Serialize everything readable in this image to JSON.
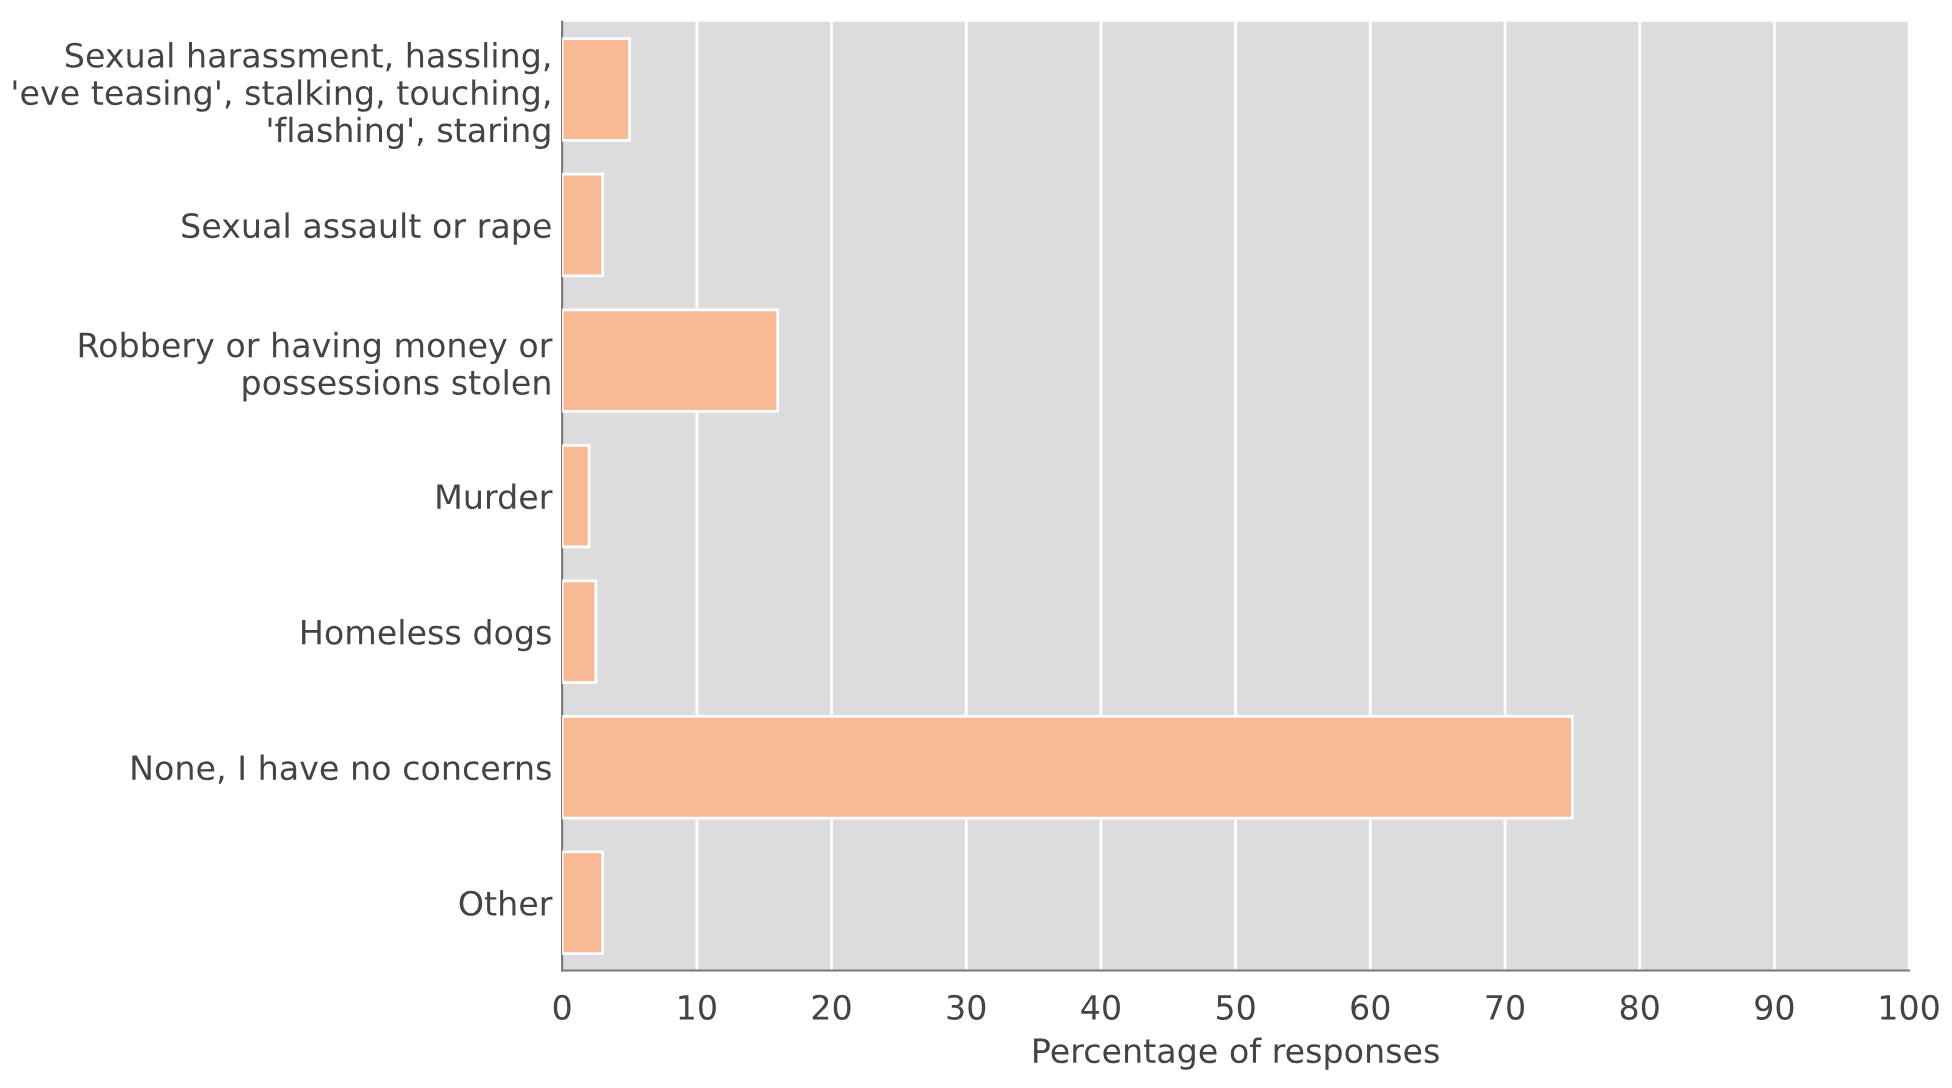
{
  "chart_data": {
    "type": "bar",
    "orientation": "horizontal",
    "xlabel": "Percentage of responses",
    "categories": [
      "Sexual harassment, hassling,\n'eve teasing', stalking, touching,\n'flashing', staring",
      "Sexual assault or rape",
      "Robbery or having money or\npossessions stolen",
      "Murder",
      "Homeless dogs",
      "None, I have no concerns",
      "Other"
    ],
    "values": [
      5,
      3,
      16,
      2,
      2.5,
      75,
      3
    ],
    "color": "#f9b994",
    "xlim": [
      0,
      100
    ],
    "xticks": [
      0,
      10,
      20,
      30,
      40,
      50,
      60,
      70,
      80,
      90,
      100
    ],
    "grid": "x"
  }
}
